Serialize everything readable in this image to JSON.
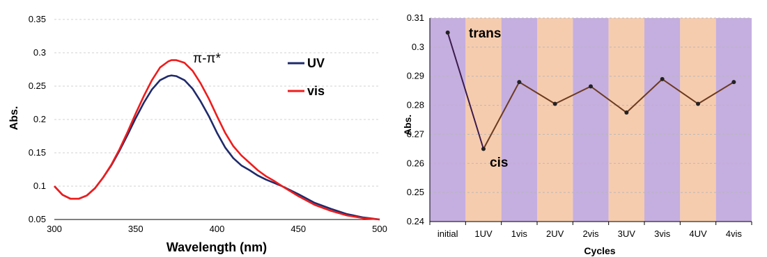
{
  "chart_data": [
    {
      "type": "line",
      "xlabel": "Wavelength (nm)",
      "ylabel": "Abs.",
      "xlim": [
        300,
        500
      ],
      "ylim": [
        0.05,
        0.35
      ],
      "xticks": [
        "300",
        "350",
        "400",
        "450",
        "500"
      ],
      "yticks": [
        "0.05",
        "0.1",
        "0.15",
        "0.2",
        "0.25",
        "0.3",
        "0.35"
      ],
      "grid": "horizontal",
      "legend": "right",
      "annotation": "π-π*",
      "series": [
        {
          "name": "UV",
          "color": "#1f2a6b",
          "x": [
            300,
            305,
            310,
            315,
            320,
            325,
            330,
            335,
            340,
            345,
            350,
            355,
            360,
            365,
            370,
            372,
            375,
            380,
            385,
            390,
            395,
            400,
            405,
            410,
            415,
            420,
            425,
            430,
            435,
            440,
            450,
            460,
            470,
            480,
            490,
            500
          ],
          "y": [
            0.1,
            0.087,
            0.081,
            0.081,
            0.086,
            0.097,
            0.113,
            0.131,
            0.153,
            0.177,
            0.202,
            0.225,
            0.245,
            0.259,
            0.265,
            0.266,
            0.265,
            0.259,
            0.246,
            0.227,
            0.205,
            0.18,
            0.158,
            0.142,
            0.131,
            0.124,
            0.116,
            0.11,
            0.105,
            0.1,
            0.088,
            0.075,
            0.066,
            0.058,
            0.053,
            0.05
          ]
        },
        {
          "name": "vis",
          "color": "#ee1c1c",
          "x": [
            300,
            305,
            310,
            315,
            320,
            325,
            330,
            335,
            340,
            345,
            350,
            355,
            360,
            365,
            370,
            372,
            375,
            380,
            385,
            390,
            395,
            400,
            405,
            410,
            415,
            420,
            425,
            430,
            435,
            440,
            450,
            460,
            470,
            480,
            490,
            500
          ],
          "y": [
            0.1,
            0.087,
            0.081,
            0.081,
            0.086,
            0.097,
            0.113,
            0.132,
            0.155,
            0.181,
            0.209,
            0.235,
            0.259,
            0.278,
            0.287,
            0.289,
            0.289,
            0.285,
            0.273,
            0.254,
            0.231,
            0.205,
            0.18,
            0.16,
            0.146,
            0.135,
            0.124,
            0.115,
            0.108,
            0.1,
            0.085,
            0.072,
            0.063,
            0.056,
            0.052,
            0.05
          ]
        }
      ]
    },
    {
      "type": "line",
      "xlabel": "Cycles",
      "ylabel": "Abs.",
      "ylim": [
        0.24,
        0.31
      ],
      "yticks": [
        "0.24",
        "0.25",
        "0.26",
        "0.27",
        "0.28",
        "0.29",
        "0.3",
        "0.31"
      ],
      "categories": [
        "initial",
        "1UV",
        "1vis",
        "2UV",
        "2vis",
        "3UV",
        "3vis",
        "4UV",
        "4vis"
      ],
      "grid": "horizontal",
      "annotations": [
        "trans",
        "cis"
      ],
      "band_colors": [
        "#c5aee0",
        "#f6ccae"
      ],
      "series": [
        {
          "values": [
            0.305,
            0.265,
            0.288,
            0.2805,
            0.2865,
            0.2775,
            0.289,
            0.2805,
            0.288
          ],
          "colors": [
            "#3b1b4d",
            "#6b3a1f"
          ]
        }
      ]
    }
  ]
}
